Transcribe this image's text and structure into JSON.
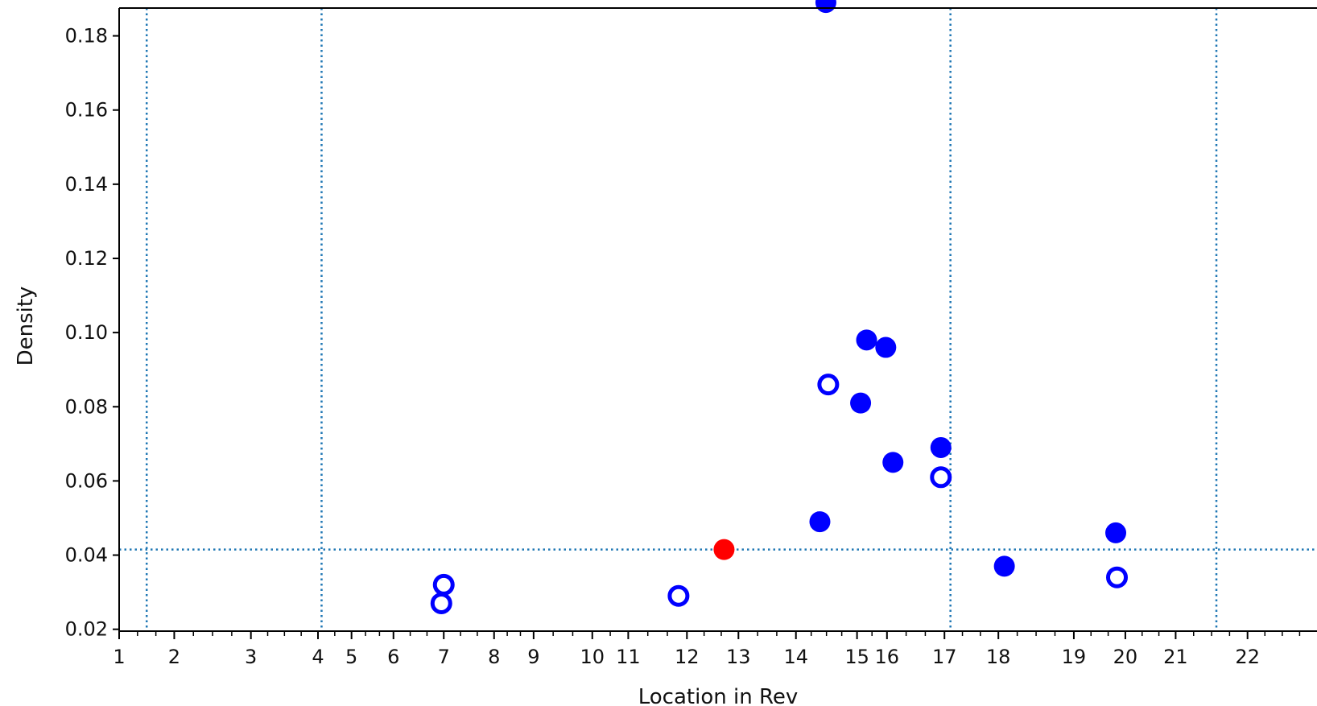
{
  "chart_data": {
    "type": "scatter",
    "title": "",
    "xlabel": "Location in Rev",
    "ylabel": "Density",
    "grid": false,
    "x_ticks": [
      {
        "label": "1",
        "pos": 0
      },
      {
        "label": "2",
        "pos": 0.046
      },
      {
        "label": "3",
        "pos": 0.11
      },
      {
        "label": "4",
        "pos": 0.166
      },
      {
        "label": "5",
        "pos": 0.194
      },
      {
        "label": "6",
        "pos": 0.229
      },
      {
        "label": "7",
        "pos": 0.271
      },
      {
        "label": "8",
        "pos": 0.313
      },
      {
        "label": "9",
        "pos": 0.346
      },
      {
        "label": "10",
        "pos": 0.395
      },
      {
        "label": "11",
        "pos": 0.425
      },
      {
        "label": "12",
        "pos": 0.474
      },
      {
        "label": "13",
        "pos": 0.517
      },
      {
        "label": "14",
        "pos": 0.565
      },
      {
        "label": "15",
        "pos": 0.616
      },
      {
        "label": "16",
        "pos": 0.641
      },
      {
        "label": "17",
        "pos": 0.689
      },
      {
        "label": "18",
        "pos": 0.734
      },
      {
        "label": "19",
        "pos": 0.797
      },
      {
        "label": "20",
        "pos": 0.84
      },
      {
        "label": "21",
        "pos": 0.882
      },
      {
        "label": "22",
        "pos": 0.942
      }
    ],
    "y_ticks": [
      "0.02",
      "0.04",
      "0.06",
      "0.08",
      "0.10",
      "0.12",
      "0.14",
      "0.16",
      "0.18"
    ],
    "ylim": [
      0.0195,
      0.1875
    ],
    "reference_lines": {
      "vertical_x": [
        0.023,
        0.169,
        0.694,
        0.916
      ],
      "horizontal_y": 0.0415,
      "color": "#1f77b4"
    },
    "colors": {
      "series": "#0000ff",
      "highlight": "#ff0000",
      "axis": "#000000"
    },
    "series": [
      {
        "marker": "filled",
        "color": "#0000ff",
        "points": [
          {
            "x": 0.59,
            "y": 0.189
          },
          {
            "x": 0.585,
            "y": 0.049
          },
          {
            "x": 0.619,
            "y": 0.081
          },
          {
            "x": 0.624,
            "y": 0.098
          },
          {
            "x": 0.64,
            "y": 0.096
          },
          {
            "x": 0.646,
            "y": 0.065
          },
          {
            "x": 0.686,
            "y": 0.069
          },
          {
            "x": 0.739,
            "y": 0.037
          },
          {
            "x": 0.832,
            "y": 0.046
          }
        ]
      },
      {
        "marker": "open",
        "color": "#0000ff",
        "points": [
          {
            "x": 0.271,
            "y": 0.032
          },
          {
            "x": 0.269,
            "y": 0.027
          },
          {
            "x": 0.467,
            "y": 0.029
          },
          {
            "x": 0.592,
            "y": 0.086
          },
          {
            "x": 0.686,
            "y": 0.061
          },
          {
            "x": 0.833,
            "y": 0.034
          }
        ]
      },
      {
        "marker": "filled",
        "color": "#ff0000",
        "points": [
          {
            "x": 0.505,
            "y": 0.0415
          }
        ]
      }
    ]
  }
}
